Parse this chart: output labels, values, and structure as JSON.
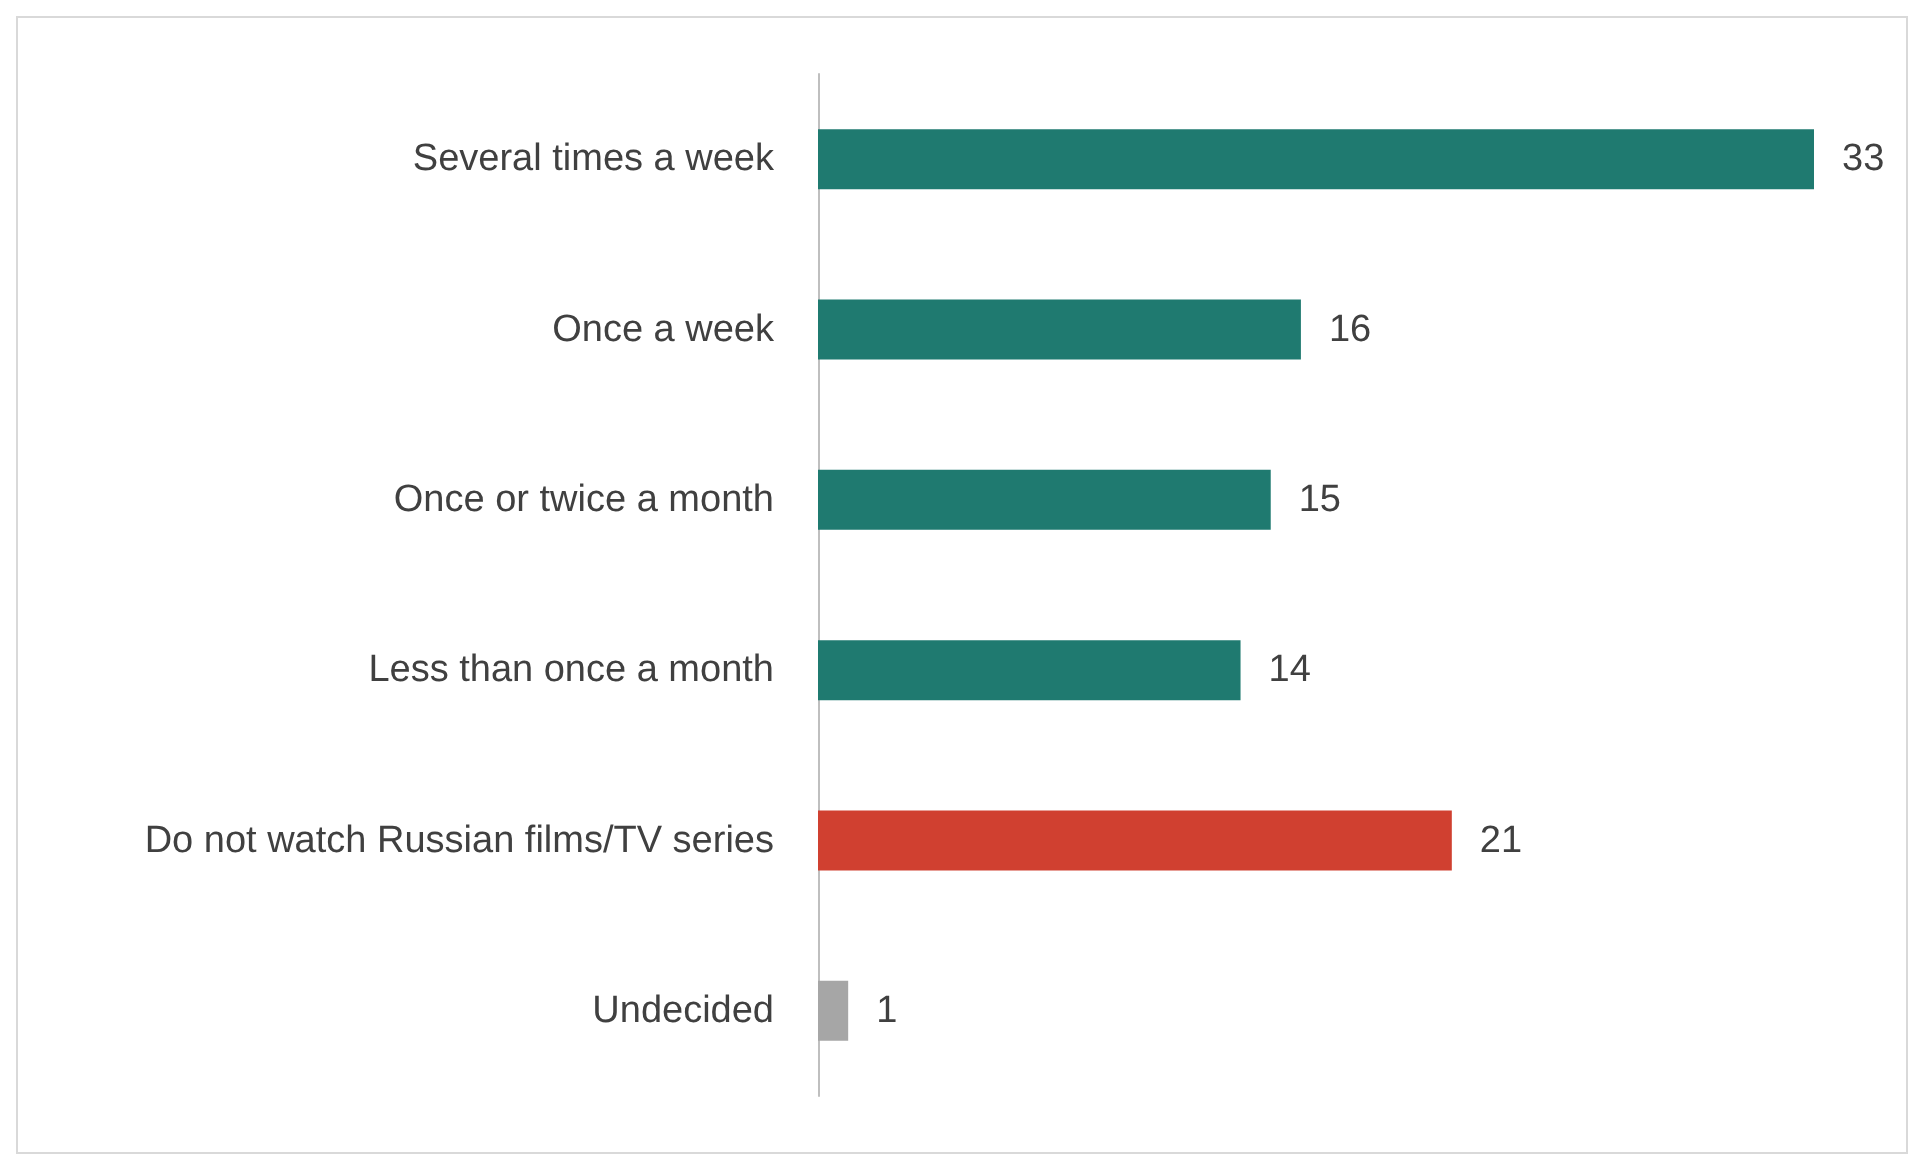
{
  "chart_data": {
    "type": "bar",
    "orientation": "horizontal",
    "categories": [
      "Several times a week",
      "Once a week",
      "Once or twice a month",
      "Less than once a month",
      "Do not watch Russian films/TV series",
      "Undecided"
    ],
    "values": [
      33,
      16,
      15,
      14,
      21,
      1
    ],
    "colors": [
      "#1f7a70",
      "#1f7a70",
      "#1f7a70",
      "#1f7a70",
      "#d04030",
      "#a6a6a6"
    ],
    "data_labels": true,
    "grid": false
  }
}
